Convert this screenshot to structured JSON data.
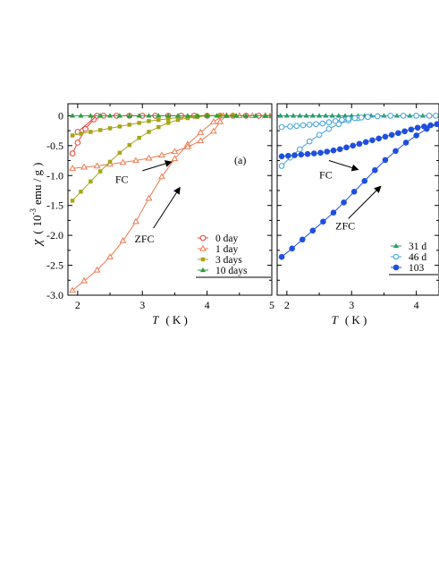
{
  "chart_data": [
    {
      "type": "line",
      "panel_label": "(a)",
      "ylabel": {
        "symbol": "χ",
        "open": "(",
        "unit_pre": "10",
        "unit_exp": "-3",
        "unit_post": "emu / g",
        "close": ")"
      },
      "xlabel": {
        "symbol": "T",
        "unit": "( K )"
      },
      "xlim": [
        1.85,
        5.0
      ],
      "ylim": [
        -3.0,
        0.2
      ],
      "xticks": [
        2,
        3,
        4,
        5
      ],
      "xtick_labels": [
        "2",
        "3",
        "4",
        "5"
      ],
      "yticks": [
        0,
        -0.5,
        -1.0,
        -1.5,
        -2.0,
        -2.5,
        -3.0
      ],
      "ytick_labels": [
        "0",
        "-0.5",
        "-1.0",
        "-1.5",
        "-2.0",
        "-2.5",
        "-3.0"
      ],
      "grid": false,
      "legend_position": "bottom-right",
      "annotations": [
        {
          "text": "FC",
          "tx": 2.58,
          "ty": -1.12,
          "from": [
            3.0,
            -0.92
          ],
          "to": [
            3.45,
            -0.77
          ]
        },
        {
          "text": "ZFC",
          "tx": 2.88,
          "ty": -2.12,
          "from": [
            3.17,
            -1.88
          ],
          "to": [
            3.58,
            -1.2
          ]
        }
      ],
      "series": [
        {
          "name": "0 day",
          "color": "#e8403a",
          "marker": "circle-open",
          "fc": {
            "x": [
              2.0,
              2.3
            ],
            "y": [
              -0.27,
              0.0
            ]
          },
          "zfc": {
            "x": [
              1.92,
              2.0,
              2.12,
              2.25,
              2.4,
              2.6,
              2.8,
              3.0,
              3.2,
              3.4,
              3.6,
              3.8,
              4.0,
              4.2,
              4.4,
              4.6,
              4.8,
              5.0
            ],
            "y": [
              -0.63,
              -0.45,
              -0.22,
              -0.06,
              0.0,
              0.0,
              0.0,
              0.0,
              0.0,
              0.0,
              0.0,
              0.0,
              0.0,
              0.0,
              0.0,
              0.0,
              0.0,
              0.0
            ]
          }
        },
        {
          "name": "1 day",
          "color": "#ee7a4e",
          "marker": "triangle-open",
          "fc": {
            "x": [
              1.92,
              2.1,
              2.3,
              2.5,
              2.7,
              2.9,
              3.1,
              3.3,
              3.5,
              3.7,
              3.9,
              4.1,
              4.2,
              4.3,
              4.5,
              4.7,
              4.9,
              5.0
            ],
            "y": [
              -0.88,
              -0.86,
              -0.84,
              -0.81,
              -0.78,
              -0.75,
              -0.71,
              -0.66,
              -0.6,
              -0.52,
              -0.42,
              -0.26,
              -0.1,
              0.0,
              0.0,
              0.0,
              0.0,
              0.0
            ]
          },
          "zfc": {
            "x": [
              1.92,
              2.1,
              2.3,
              2.5,
              2.7,
              2.9,
              3.1,
              3.3,
              3.5,
              3.7,
              3.9,
              4.1,
              4.25
            ],
            "y": [
              -2.92,
              -2.76,
              -2.58,
              -2.36,
              -2.09,
              -1.77,
              -1.38,
              -1.02,
              -0.72,
              -0.48,
              -0.28,
              -0.1,
              0.0
            ]
          }
        },
        {
          "name": "3 days",
          "color": "#a6a517",
          "marker": "square",
          "fc": {
            "x": [
              1.92,
              2.05,
              2.2,
              2.35,
              2.5,
              2.65,
              2.8,
              2.95,
              3.1,
              3.25,
              3.4,
              3.55,
              3.7,
              3.85,
              4.0,
              4.2,
              4.4
            ],
            "y": [
              -0.33,
              -0.3,
              -0.27,
              -0.24,
              -0.21,
              -0.18,
              -0.15,
              -0.12,
              -0.09,
              -0.07,
              -0.05,
              -0.03,
              -0.02,
              -0.01,
              0.0,
              0.0,
              0.0
            ]
          },
          "zfc": {
            "x": [
              1.92,
              2.05,
              2.2,
              2.35,
              2.5,
              2.65,
              2.8,
              2.95,
              3.1,
              3.25,
              3.4,
              3.55,
              3.7,
              3.85,
              4.0,
              4.2,
              4.4
            ],
            "y": [
              -1.42,
              -1.27,
              -1.1,
              -0.93,
              -0.77,
              -0.62,
              -0.49,
              -0.37,
              -0.27,
              -0.19,
              -0.12,
              -0.07,
              -0.04,
              -0.02,
              0.0,
              0.0,
              0.0
            ]
          }
        },
        {
          "name": "10 days",
          "color": "#2f9e3a",
          "marker": "triangle",
          "fc": {
            "x": [],
            "y": []
          },
          "zfc": {
            "x": [
              1.92,
              2.05,
              2.2,
              2.35,
              2.5,
              2.65,
              2.8,
              2.95,
              3.1,
              3.25,
              3.4,
              3.55,
              3.7,
              3.85,
              4.0,
              4.15,
              4.3,
              4.45,
              4.6,
              4.75,
              4.9,
              5.0
            ],
            "y": [
              0.0,
              0.0,
              0.0,
              0.0,
              0.0,
              0.0,
              0.0,
              0.0,
              0.0,
              0.0,
              0.0,
              0.0,
              0.0,
              0.0,
              0.0,
              0.0,
              0.0,
              0.0,
              0.0,
              0.0,
              0.0,
              0.0
            ]
          }
        }
      ]
    },
    {
      "type": "line",
      "xlabel": {
        "symbol": "T",
        "unit": "( K )"
      },
      "xlim": [
        1.85,
        4.35
      ],
      "ylim": [
        -3.0,
        0.2
      ],
      "xticks": [
        2,
        3,
        4
      ],
      "xtick_labels": [
        "2",
        "3",
        "4"
      ],
      "grid": false,
      "legend_position": "bottom-right",
      "annotations": [
        {
          "text": "FC",
          "tx": 2.5,
          "ty": -1.05,
          "from": [
            2.65,
            -0.75
          ],
          "to": [
            3.1,
            -0.9
          ]
        },
        {
          "text": "ZFC",
          "tx": 2.75,
          "ty": -1.9,
          "from": [
            2.95,
            -1.72
          ],
          "to": [
            3.45,
            -1.18
          ]
        }
      ],
      "series": [
        {
          "name": "31 d",
          "color": "#2a9a6e",
          "marker": "triangle",
          "fc": {
            "x": [],
            "y": []
          },
          "zfc": {
            "x": [
              1.9,
              2.0,
              2.1,
              2.2,
              2.3,
              2.4,
              2.5,
              2.6,
              2.7,
              2.8,
              2.9,
              3.0,
              3.1,
              3.2,
              3.3,
              3.4,
              3.5,
              3.6,
              3.7,
              3.8,
              3.9,
              4.0,
              4.1,
              4.2,
              4.3
            ],
            "y": [
              0.0,
              0.0,
              0.0,
              0.0,
              0.0,
              0.0,
              0.0,
              0.0,
              0.0,
              0.0,
              0.0,
              0.0,
              0.0,
              0.0,
              0.0,
              0.0,
              0.0,
              0.0,
              0.0,
              0.0,
              0.0,
              0.0,
              0.0,
              0.0,
              0.0
            ]
          }
        },
        {
          "name": "46 d",
          "color": "#3ea1dc",
          "marker": "circle-open",
          "fc": {
            "x": [
              1.92,
              2.05,
              2.15,
              2.25,
              2.35,
              2.45,
              2.55,
              2.65,
              2.75,
              2.85,
              2.95,
              3.05,
              3.15,
              3.25,
              3.4,
              3.6,
              3.8,
              4.0,
              4.2,
              4.3
            ],
            "y": [
              -0.19,
              -0.18,
              -0.17,
              -0.16,
              -0.15,
              -0.14,
              -0.13,
              -0.11,
              -0.09,
              -0.07,
              -0.05,
              -0.04,
              -0.03,
              -0.02,
              -0.01,
              0.0,
              0.0,
              0.0,
              0.0,
              0.0
            ]
          },
          "zfc": {
            "x": [
              1.92,
              2.05,
              2.2,
              2.35,
              2.5,
              2.65,
              2.8,
              2.95,
              3.1,
              3.25
            ],
            "y": [
              -0.84,
              -0.7,
              -0.56,
              -0.43,
              -0.32,
              -0.22,
              -0.14,
              -0.08,
              -0.04,
              -0.02
            ]
          }
        },
        {
          "name": "103",
          "color": "#1f4fe0",
          "marker": "circle",
          "fc": {
            "x": [
              1.92,
              2.02,
              2.12,
              2.22,
              2.32,
              2.42,
              2.52,
              2.62,
              2.72,
              2.82,
              2.92,
              3.02,
              3.12,
              3.22,
              3.32,
              3.42,
              3.52,
              3.62,
              3.72,
              3.82,
              3.92,
              4.02,
              4.12,
              4.22,
              4.32
            ],
            "y": [
              -0.68,
              -0.67,
              -0.66,
              -0.65,
              -0.64,
              -0.63,
              -0.62,
              -0.6,
              -0.58,
              -0.56,
              -0.53,
              -0.5,
              -0.47,
              -0.44,
              -0.41,
              -0.38,
              -0.35,
              -0.32,
              -0.29,
              -0.26,
              -0.23,
              -0.2,
              -0.18,
              -0.16,
              -0.14
            ]
          },
          "zfc": {
            "x": [
              1.92,
              2.08,
              2.24,
              2.4,
              2.56,
              2.72,
              2.88,
              3.04,
              3.2,
              3.36,
              3.52,
              3.68,
              3.84,
              4.0,
              4.16,
              4.32
            ],
            "y": [
              -2.36,
              -2.22,
              -2.07,
              -1.92,
              -1.77,
              -1.62,
              -1.45,
              -1.27,
              -1.09,
              -0.91,
              -0.74,
              -0.59,
              -0.45,
              -0.33,
              -0.22,
              -0.14
            ]
          }
        }
      ]
    }
  ]
}
